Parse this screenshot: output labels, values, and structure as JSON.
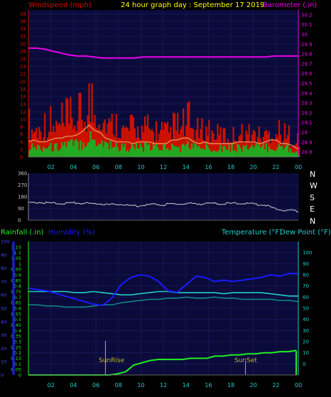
{
  "header": {
    "windspeed_label": "Windspeed (mph)",
    "title": "24 hour graph day : September 17 2019",
    "barometer_label": "Barometer (.in)"
  },
  "middle": {
    "compass": [
      "N",
      "W",
      "S",
      "E",
      "N"
    ]
  },
  "bottom_header": {
    "rainfall_label": "Rainfall (.in)",
    "humidity_label": "Humidity (%)",
    "temperature_label": "Temperature (°F)",
    "dewpoint_label": "Dew Point (°F)"
  },
  "annotations": {
    "sunrise": "SunRise",
    "sunset": "SunSet"
  },
  "colors": {
    "bg": "#000000",
    "plot_bg": "#0b0b3b",
    "grid": "#1c1c66",
    "wind_gust": "#cc1100",
    "wind_avg": "#22aa22",
    "wind_avg_line": "#e8a060",
    "barometer": "#ee00ee",
    "direction": "#cccccc",
    "humidity": "#1a1aff",
    "temperature": "#22cccc",
    "dewpoint": "#108c8c",
    "rainfall": "#22ee22",
    "sun_marker": "#bbbb22"
  },
  "chart_data": [
    {
      "type": "area",
      "name": "wind_barometer",
      "x_ticks": [
        "02",
        "04",
        "06",
        "08",
        "10",
        "12",
        "14",
        "16",
        "18",
        "20",
        "22",
        "00"
      ],
      "x_hours": [
        0,
        2,
        4,
        6,
        8,
        10,
        12,
        14,
        16,
        18,
        20,
        22,
        24
      ],
      "wind_ticks": [
        "0",
        "2",
        "4",
        "6",
        "8",
        "10",
        "12",
        "14",
        "16",
        "18",
        "20",
        "22",
        "24",
        "26",
        "28",
        "30",
        "32",
        "34",
        "36",
        "38"
      ],
      "wind_ylim": [
        0,
        39
      ],
      "baro_ticks": [
        "28.8",
        "28.9",
        "29",
        "29.1",
        "29.2",
        "29.3",
        "29.4",
        "29.5",
        "29.6",
        "29.7",
        "29.8",
        "29.9",
        "30",
        "30.1",
        "30.2"
      ],
      "baro_ylim": [
        28.75,
        30.25
      ],
      "gust_max_mph": [
        13,
        14,
        13,
        12,
        14,
        14,
        15,
        16,
        16,
        17,
        18,
        21,
        20,
        19,
        14,
        12,
        12,
        11,
        12,
        11,
        12,
        11,
        12,
        10,
        10,
        9,
        12,
        12,
        13,
        15,
        11,
        10,
        11,
        10,
        9,
        8,
        8,
        8,
        9,
        9,
        9,
        9,
        8,
        9,
        10,
        11,
        9,
        9,
        8,
        6
      ],
      "gust_typ_mph": [
        7,
        7,
        7,
        7,
        7,
        8,
        8,
        8,
        9,
        9,
        10,
        11,
        11,
        10,
        9,
        8,
        8,
        7,
        7,
        7,
        7,
        7,
        7,
        6,
        6,
        6,
        7,
        7,
        7,
        8,
        7,
        6,
        7,
        6,
        6,
        5,
        5,
        5,
        6,
        6,
        6,
        6,
        5,
        6,
        6,
        6,
        5,
        5,
        4,
        3
      ],
      "avg_mph": [
        3,
        3,
        3,
        3,
        3,
        3,
        4,
        4,
        4,
        4,
        5,
        6,
        5,
        5,
        4,
        4,
        3,
        3,
        3,
        3,
        3,
        3,
        3,
        3,
        3,
        3,
        3,
        3,
        3,
        4,
        3,
        3,
        3,
        3,
        3,
        3,
        3,
        3,
        3,
        3,
        3,
        3,
        3,
        3,
        3,
        3,
        3,
        3,
        2,
        1
      ],
      "avg_line_mph": [
        4,
        4.5,
        4,
        4,
        4.5,
        5,
        5,
        5.5,
        5.5,
        6,
        7,
        8.5,
        7,
        6.5,
        5,
        4.5,
        4,
        4,
        4,
        3.5,
        4,
        4,
        4,
        3.5,
        3.5,
        3.5,
        4.5,
        4.5,
        5,
        5,
        4,
        3.5,
        4,
        3.5,
        3.5,
        3.5,
        3.5,
        3.5,
        4,
        4,
        4,
        4,
        3.5,
        4,
        4.5,
        4.5,
        3.5,
        3.5,
        3,
        2
      ],
      "barometer_in": [
        29.86,
        29.86,
        29.85,
        29.83,
        29.81,
        29.79,
        29.78,
        29.78,
        29.77,
        29.76,
        29.76,
        29.76,
        29.76,
        29.76,
        29.77,
        29.77,
        29.77,
        29.77,
        29.77,
        29.77,
        29.77,
        29.77,
        29.77,
        29.77,
        29.77,
        29.77,
        29.77,
        29.77,
        29.77,
        29.77,
        29.78,
        29.78,
        29.78,
        29.78
      ]
    },
    {
      "type": "line",
      "name": "wind_direction",
      "dir_ticks": [
        "360",
        "270",
        "180",
        "90",
        "0"
      ],
      "dir_ylim": [
        0,
        360
      ],
      "direction_deg": [
        130,
        135,
        136,
        132,
        130,
        128,
        130,
        133,
        131,
        128,
        125,
        128,
        120,
        118,
        125,
        115,
        112,
        110,
        118,
        120,
        122,
        118,
        125,
        122,
        128,
        126,
        128,
        125,
        130,
        128,
        126,
        128,
        128,
        130,
        128,
        125,
        120,
        115,
        95,
        85,
        75,
        75,
        70
      ]
    },
    {
      "type": "line",
      "name": "temp_humidity_rain",
      "rain_ticks": [
        "0",
        "0.05",
        "0.1",
        "0.15",
        "0.2",
        "0.25",
        "0.3",
        "0.35",
        "0.4",
        "0.45",
        "0.5",
        "0.55",
        "0.6",
        "0.65",
        "0.7",
        "0.75",
        "0.8",
        "0.85",
        "0.9",
        "0.95",
        "1",
        "1.05",
        "1.1",
        "1.15"
      ],
      "rain_ylim": [
        0,
        1.2
      ],
      "humidity_ticks": [
        "0",
        "10",
        "20",
        "30",
        "40",
        "50",
        "60",
        "70",
        "80",
        "90",
        "100"
      ],
      "humidity_ylim": [
        0,
        100
      ],
      "temp_ticks": [
        "0",
        "10",
        "20",
        "30",
        "40",
        "50",
        "60",
        "70",
        "80",
        "90",
        "100"
      ],
      "temp_ylim": [
        -10,
        110
      ],
      "humidity_pct": [
        65,
        64,
        63,
        61,
        59,
        57,
        55,
        53,
        52,
        58,
        68,
        73,
        75,
        74,
        70,
        63,
        62,
        68,
        74,
        73,
        70,
        71,
        70,
        71,
        72,
        73,
        75,
        74,
        76,
        76
      ],
      "temperature_f": [
        65,
        65,
        65,
        65,
        65,
        64,
        64,
        65,
        64,
        63,
        62,
        62,
        63,
        64,
        65,
        65,
        64,
        64,
        64,
        64,
        64,
        63,
        64,
        64,
        64,
        64,
        63,
        62,
        61,
        61
      ],
      "dewpoint_f": [
        53,
        53,
        52,
        52,
        51,
        51,
        51,
        52,
        53,
        53,
        55,
        56,
        57,
        58,
        58,
        59,
        59,
        60,
        59,
        59,
        60,
        59,
        59,
        58,
        58,
        58,
        58,
        57,
        57,
        56
      ],
      "rainfall_in": [
        0,
        0,
        0,
        0,
        0,
        0,
        0,
        0,
        0,
        0,
        0,
        0.01,
        0.03,
        0.09,
        0.11,
        0.13,
        0.14,
        0.14,
        0.14,
        0.14,
        0.15,
        0.15,
        0.15,
        0.17,
        0.17,
        0.18,
        0.18,
        0.19,
        0.19,
        0.2,
        0.2,
        0.21,
        0.21,
        0.22
      ],
      "sunrise_hour": 6.85,
      "sunset_hour": 19.3
    }
  ]
}
